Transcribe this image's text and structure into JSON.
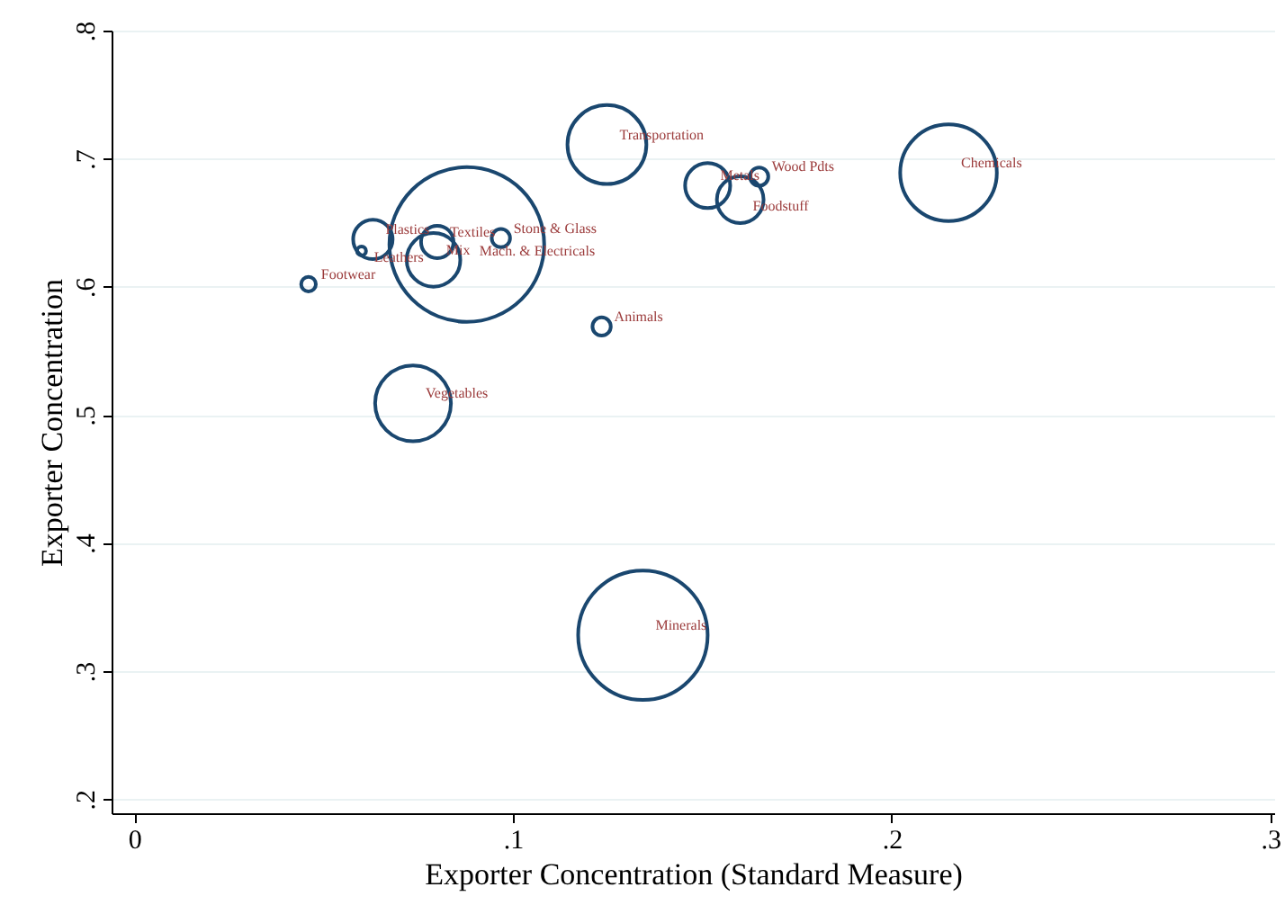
{
  "chart_data": {
    "type": "bubble",
    "xlabel": "Exporter Concentration (Standard Measure)",
    "ylabel": "Exporter Concentration",
    "x": [
      0.1248,
      0.1514,
      0.165,
      0.16,
      0.215,
      0.063,
      0.06,
      0.08,
      0.079,
      0.0878,
      0.0968,
      0.046,
      0.1234,
      0.0736,
      0.1343
    ],
    "series": [
      {
        "color": "#1a476f",
        "values": [
          0.711,
          0.679,
          0.686,
          0.668,
          0.689,
          0.637,
          0.628,
          0.635,
          0.621,
          0.633,
          0.638,
          0.602,
          0.569,
          0.509,
          0.328
        ],
        "sizes": [
          0.26,
          0.085,
          0.014,
          0.091,
          0.39,
          0.065,
          0.0034,
          0.044,
          0.12,
          1,
          0.014,
          0.009,
          0.014,
          0.24,
          0.7
        ],
        "value_labels": [
          "Transportation",
          "Metals",
          "Wood Pdts",
          "Foodstuff",
          "Chemicals",
          "Plastics",
          "Leathers",
          "Textiles",
          "Mix",
          "Mach. & Electricals",
          "Stone & Glass",
          "Footwear",
          "Animals",
          "Vegetables",
          "Minerals"
        ]
      }
    ],
    "xlim": [
      -0.006,
      0.301
    ],
    "ylim": [
      0.189,
      0.8
    ],
    "xticks": [
      0,
      {
        "value": 0.1,
        "label": ".1"
      },
      {
        "value": 0.2,
        "label": ".2"
      },
      {
        "value": 0.3,
        "label": ".3"
      }
    ],
    "yticks": [
      {
        "value": 0.2,
        "label": ".2"
      },
      {
        "value": 0.3,
        "label": ".3"
      },
      {
        "value": 0.4,
        "label": ".4"
      },
      {
        "value": 0.5,
        "label": ".5"
      },
      {
        "value": 0.6,
        "label": ".6"
      },
      {
        "value": 0.7,
        "label": ".7"
      },
      {
        "value": 0.8,
        "label": ".8"
      }
    ],
    "grid": "y",
    "marker": "circle"
  }
}
